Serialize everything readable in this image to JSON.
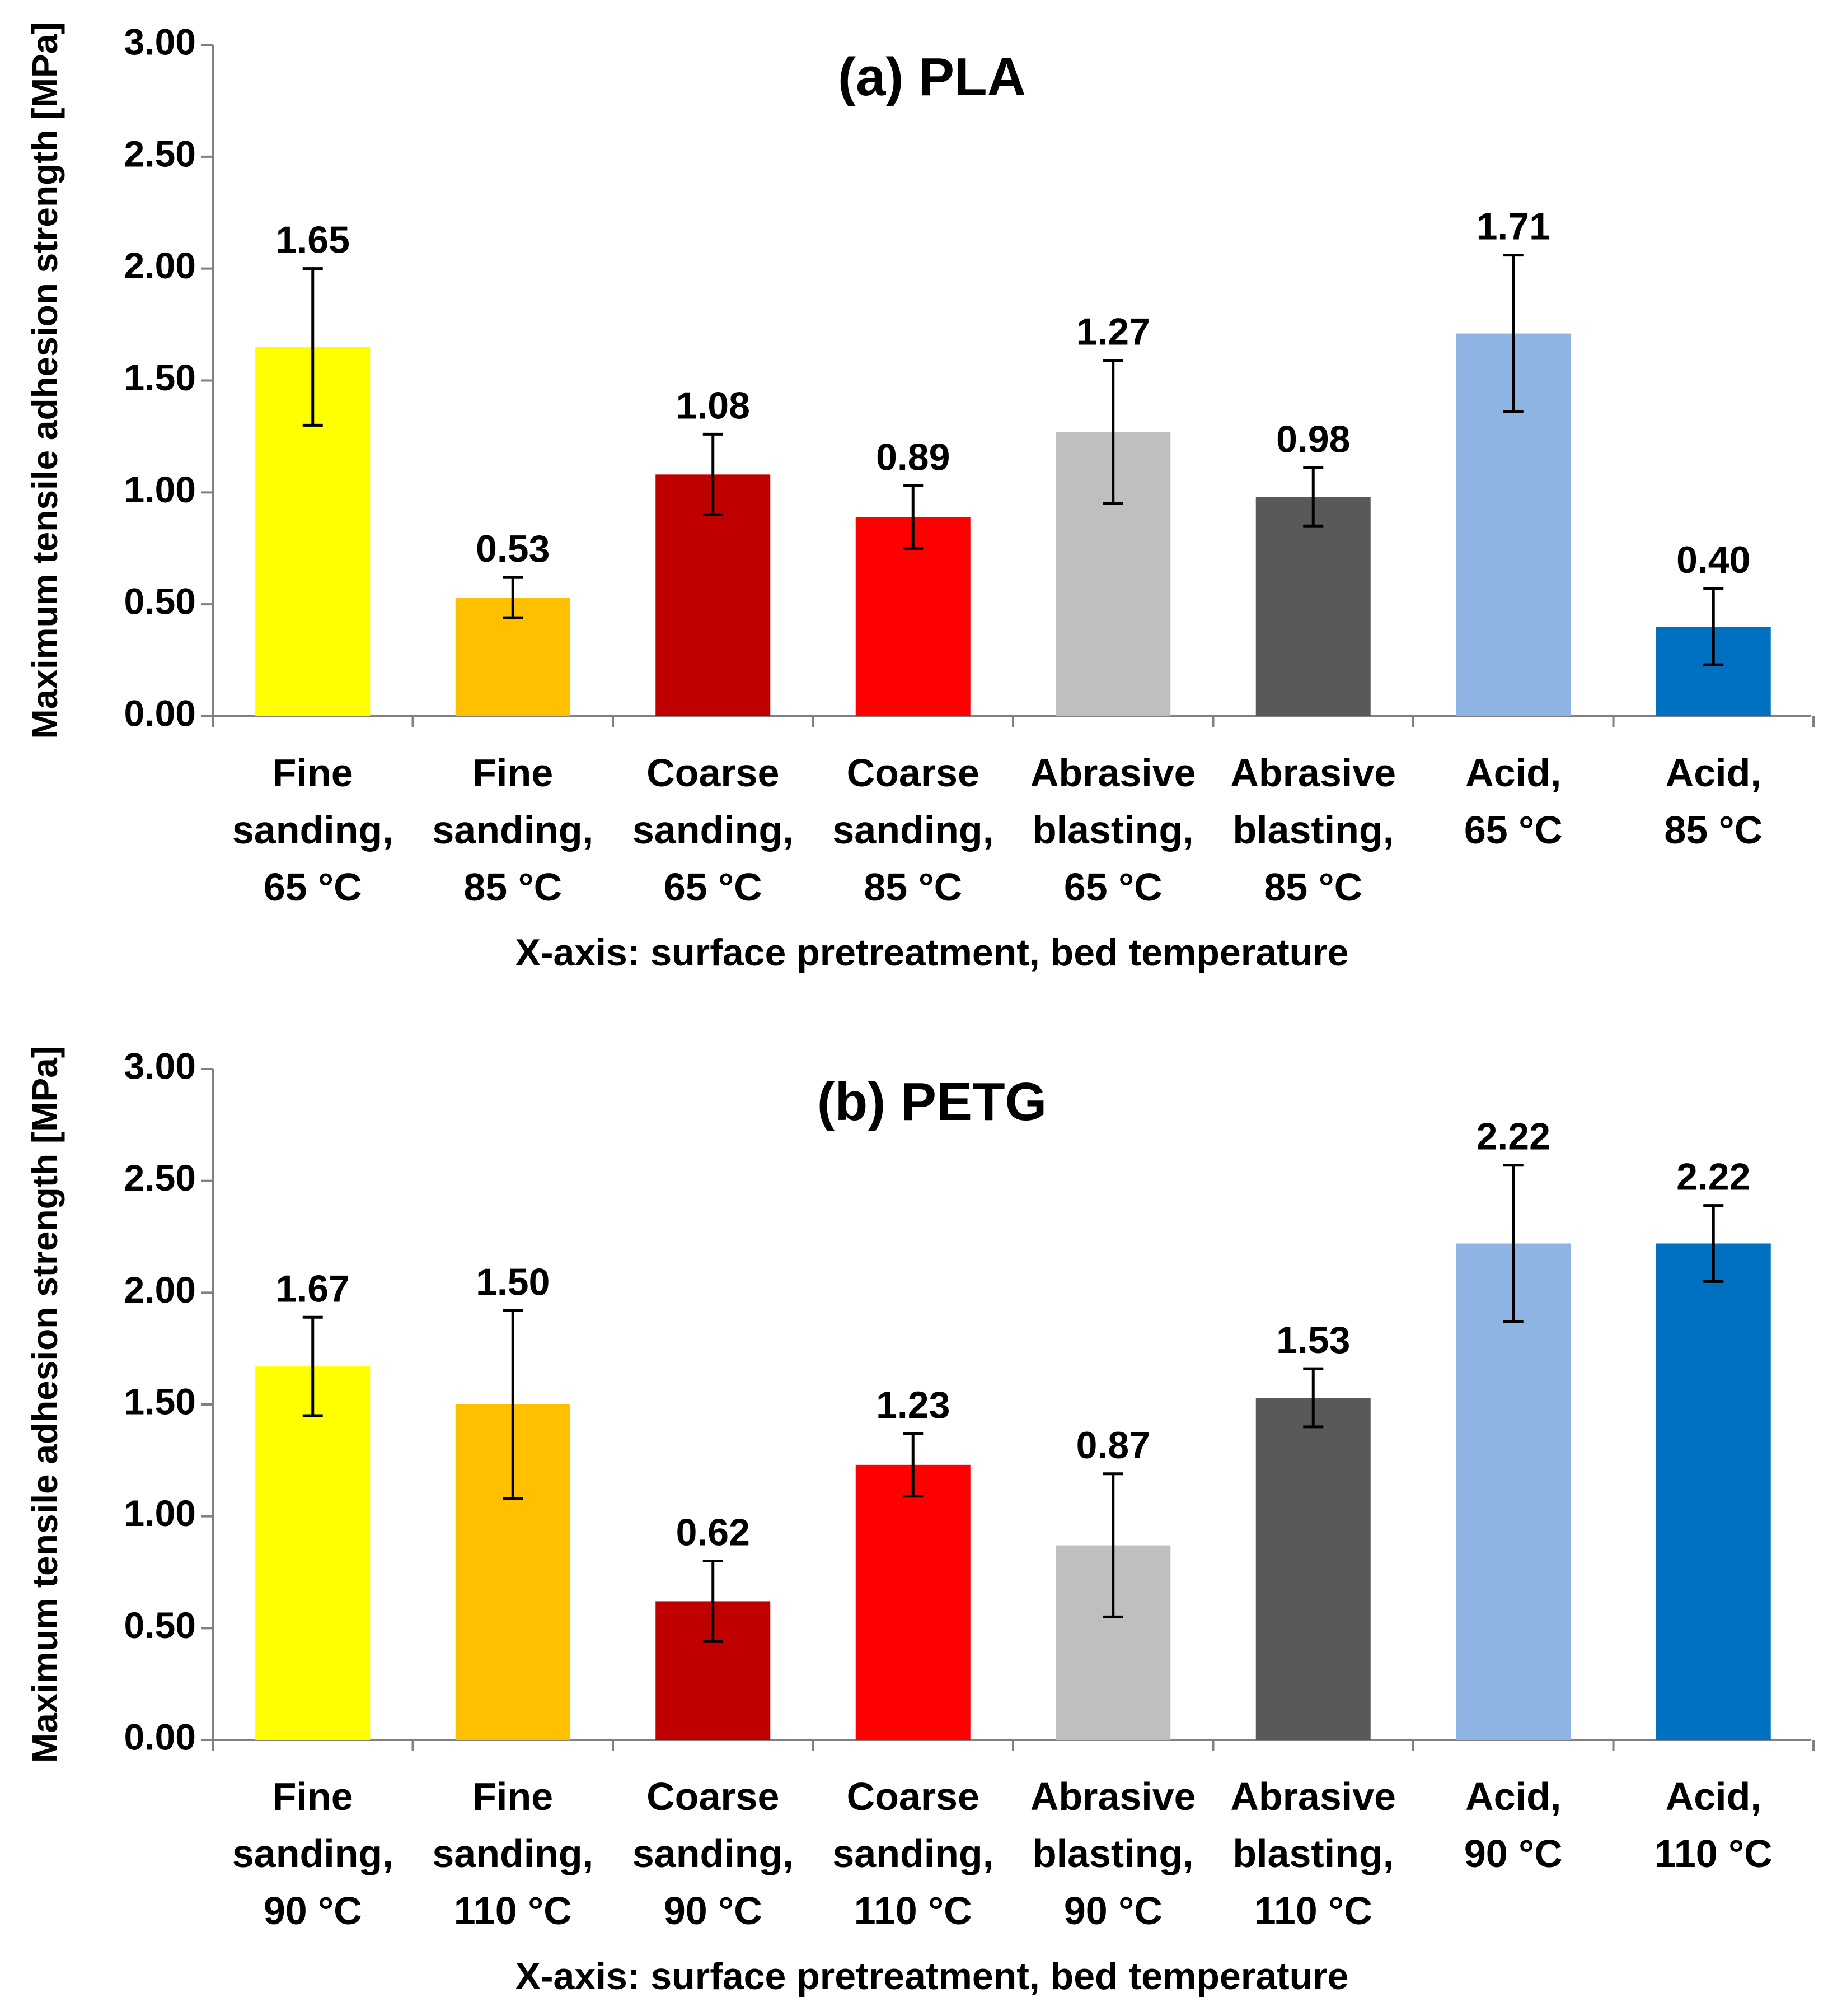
{
  "chart_data": [
    {
      "type": "bar",
      "title": "(a) PLA",
      "xlabel": "X-axis: surface pretreatment, bed temperature",
      "ylabel": "Maximum tensile adhesion strength [MPa]",
      "ylim": [
        0,
        3
      ],
      "yticks": [
        "0.00",
        "0.50",
        "1.00",
        "1.50",
        "2.00",
        "2.50",
        "3.00"
      ],
      "grid": false,
      "categories": [
        [
          "Fine",
          "sanding,",
          "65 °C"
        ],
        [
          "Fine",
          "sanding,",
          "85 °C"
        ],
        [
          "Coarse",
          "sanding,",
          "65 °C"
        ],
        [
          "Coarse",
          "sanding,",
          "85 °C"
        ],
        [
          "Abrasive",
          "blasting,",
          "65 °C"
        ],
        [
          "Abrasive",
          "blasting,",
          "85 °C"
        ],
        [
          "Acid,",
          "65 °C"
        ],
        [
          "Acid,",
          "85 °C"
        ]
      ],
      "values": [
        1.65,
        0.53,
        1.08,
        0.89,
        1.27,
        0.98,
        1.71,
        0.4
      ],
      "value_labels": [
        "1.65",
        "0.53",
        "1.08",
        "0.89",
        "1.27",
        "0.98",
        "1.71",
        "0.40"
      ],
      "errors": [
        0.35,
        0.09,
        0.18,
        0.14,
        0.32,
        0.13,
        0.35,
        0.17
      ],
      "colors": [
        "#FFFF00",
        "#FFC000",
        "#C00000",
        "#FF0000",
        "#BFBFBF",
        "#595959",
        "#8EB4E3",
        "#0070C0"
      ]
    },
    {
      "type": "bar",
      "title": "(b) PETG",
      "xlabel": "X-axis: surface pretreatment, bed temperature",
      "ylabel": "Maximum tensile adhesion strength [MPa]",
      "ylim": [
        0,
        3
      ],
      "yticks": [
        "0.00",
        "0.50",
        "1.00",
        "1.50",
        "2.00",
        "2.50",
        "3.00"
      ],
      "grid": false,
      "categories": [
        [
          "Fine",
          "sanding,",
          "90 °C"
        ],
        [
          "Fine",
          "sanding,",
          "110 °C"
        ],
        [
          "Coarse",
          "sanding,",
          "90 °C"
        ],
        [
          "Coarse",
          "sanding,",
          "110 °C"
        ],
        [
          "Abrasive",
          "blasting,",
          "90 °C"
        ],
        [
          "Abrasive",
          "blasting,",
          "110 °C"
        ],
        [
          "Acid,",
          "90 °C"
        ],
        [
          "Acid,",
          "110 °C"
        ]
      ],
      "values": [
        1.67,
        1.5,
        0.62,
        1.23,
        0.87,
        1.53,
        2.22,
        2.22
      ],
      "value_labels": [
        "1.67",
        "1.50",
        "0.62",
        "1.23",
        "0.87",
        "1.53",
        "2.22",
        "2.22"
      ],
      "errors": [
        0.22,
        0.42,
        0.18,
        0.14,
        0.32,
        0.13,
        0.35,
        0.17
      ],
      "colors": [
        "#FFFF00",
        "#FFC000",
        "#C00000",
        "#FF0000",
        "#BFBFBF",
        "#595959",
        "#8EB4E3",
        "#0070C0"
      ]
    }
  ]
}
